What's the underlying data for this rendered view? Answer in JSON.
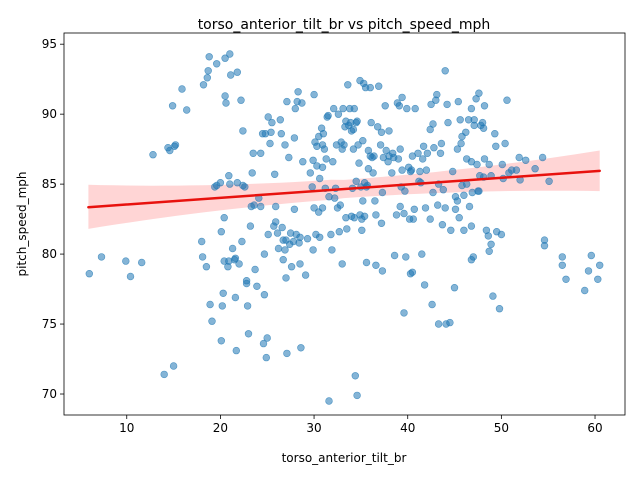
{
  "chart_data": {
    "type": "scatter",
    "title": "torso_anterior_tilt_br vs pitch_speed_mph",
    "xlabel": "torso_anterior_tilt_br",
    "ylabel": "pitch_speed_mph",
    "xlim": [
      3.3,
      63.2
    ],
    "ylim": [
      68.5,
      95.8
    ],
    "xticks": [
      10,
      20,
      30,
      40,
      50,
      60
    ],
    "yticks": [
      70,
      75,
      80,
      85,
      90,
      95
    ],
    "grid": false,
    "point_color": "#1f77b4",
    "regression": {
      "color": "#e8120e",
      "band_color": "#ffb3b3",
      "x": [
        5.9,
        60.5
      ],
      "y": [
        83.35,
        85.95
      ],
      "ci_upper": [
        84.95,
        87.4
      ],
      "ci_lower": [
        81.8,
        84.5
      ]
    },
    "points": [
      [
        6.0,
        78.6
      ],
      [
        7.3,
        79.8
      ],
      [
        9.9,
        79.5
      ],
      [
        10.4,
        78.4
      ],
      [
        11.6,
        79.4
      ],
      [
        12.8,
        87.1
      ],
      [
        14.0,
        71.4
      ],
      [
        14.4,
        87.6
      ],
      [
        14.6,
        87.4
      ],
      [
        15.0,
        72.0
      ],
      [
        14.9,
        90.6
      ],
      [
        15.1,
        87.7
      ],
      [
        15.2,
        87.8
      ],
      [
        15.9,
        91.8
      ],
      [
        16.4,
        90.3
      ],
      [
        18.0,
        80.9
      ],
      [
        18.1,
        79.8
      ],
      [
        18.2,
        92.1
      ],
      [
        18.5,
        79.1
      ],
      [
        18.6,
        92.6
      ],
      [
        18.7,
        93.1
      ],
      [
        18.8,
        94.1
      ],
      [
        18.9,
        76.4
      ],
      [
        19.1,
        75.2
      ],
      [
        19.4,
        84.8
      ],
      [
        19.6,
        84.9
      ],
      [
        19.6,
        93.6
      ],
      [
        20.0,
        85.1
      ],
      [
        20.1,
        81.6
      ],
      [
        20.1,
        73.8
      ],
      [
        20.2,
        76.3
      ],
      [
        20.3,
        77.2
      ],
      [
        20.4,
        82.6
      ],
      [
        20.4,
        79.5
      ],
      [
        20.5,
        91.3
      ],
      [
        20.5,
        94.0
      ],
      [
        20.6,
        90.8
      ],
      [
        20.8,
        79.1
      ],
      [
        20.9,
        79.5
      ],
      [
        20.9,
        85.6
      ],
      [
        21.0,
        94.3
      ],
      [
        21.0,
        85.0
      ],
      [
        21.1,
        92.8
      ],
      [
        21.3,
        80.4
      ],
      [
        21.5,
        79.6
      ],
      [
        21.6,
        76.9
      ],
      [
        21.6,
        79.7
      ],
      [
        21.7,
        73.1
      ],
      [
        21.8,
        93.0
      ],
      [
        21.8,
        85.1
      ],
      [
        22.0,
        79.3
      ],
      [
        22.2,
        91.0
      ],
      [
        22.3,
        80.9
      ],
      [
        22.4,
        88.8
      ],
      [
        22.4,
        84.9
      ],
      [
        22.6,
        84.8
      ],
      [
        22.8,
        78.1
      ],
      [
        22.8,
        77.9
      ],
      [
        22.9,
        76.3
      ],
      [
        23.0,
        74.3
      ],
      [
        23.2,
        82.0
      ],
      [
        23.3,
        83.4
      ],
      [
        23.4,
        85.8
      ],
      [
        23.5,
        87.2
      ],
      [
        23.6,
        83.5
      ],
      [
        23.7,
        78.9
      ],
      [
        23.9,
        77.7
      ],
      [
        24.1,
        84.0
      ],
      [
        24.3,
        83.4
      ],
      [
        24.3,
        87.2
      ],
      [
        24.5,
        88.6
      ],
      [
        24.6,
        73.6
      ],
      [
        24.7,
        77.1
      ],
      [
        24.7,
        80.0
      ],
      [
        24.8,
        88.6
      ],
      [
        24.9,
        72.6
      ],
      [
        25.0,
        74.0
      ],
      [
        25.1,
        89.8
      ],
      [
        25.1,
        81.4
      ],
      [
        25.3,
        87.9
      ],
      [
        25.4,
        88.7
      ],
      [
        25.5,
        89.4
      ],
      [
        25.7,
        82.0
      ],
      [
        25.8,
        85.7
      ],
      [
        25.9,
        82.3
      ],
      [
        25.9,
        83.4
      ],
      [
        26.1,
        81.5
      ],
      [
        26.2,
        80.4
      ],
      [
        26.4,
        89.6
      ],
      [
        26.5,
        88.6
      ],
      [
        26.6,
        81.9
      ],
      [
        26.7,
        79.6
      ],
      [
        26.7,
        81.0
      ],
      [
        26.9,
        87.8
      ],
      [
        26.9,
        80.3
      ],
      [
        27.0,
        81.0
      ],
      [
        27.0,
        78.3
      ],
      [
        27.1,
        90.9
      ],
      [
        27.1,
        72.9
      ],
      [
        27.3,
        86.9
      ],
      [
        27.4,
        80.7
      ],
      [
        27.5,
        81.5
      ],
      [
        27.6,
        79.1
      ],
      [
        27.8,
        80.9
      ],
      [
        27.9,
        88.3
      ],
      [
        27.9,
        83.2
      ],
      [
        28.0,
        90.4
      ],
      [
        28.1,
        81.4
      ],
      [
        28.2,
        90.9
      ],
      [
        28.3,
        91.6
      ],
      [
        28.4,
        80.8
      ],
      [
        28.5,
        79.3
      ],
      [
        28.5,
        81.2
      ],
      [
        28.6,
        73.3
      ],
      [
        28.7,
        90.8
      ],
      [
        28.8,
        86.6
      ],
      [
        29.1,
        78.5
      ],
      [
        29.3,
        81.1
      ],
      [
        29.6,
        85.8
      ],
      [
        29.8,
        84.8
      ],
      [
        29.9,
        80.3
      ],
      [
        29.9,
        86.7
      ],
      [
        30.0,
        91.4
      ],
      [
        30.0,
        83.3
      ],
      [
        30.1,
        88.0
      ],
      [
        30.2,
        81.4
      ],
      [
        30.3,
        86.3
      ],
      [
        30.3,
        87.7
      ],
      [
        30.5,
        88.4
      ],
      [
        30.5,
        83.0
      ],
      [
        30.6,
        85.4
      ],
      [
        30.6,
        81.2
      ],
      [
        30.8,
        89.0
      ],
      [
        30.9,
        87.8
      ],
      [
        30.9,
        86.2
      ],
      [
        30.9,
        83.3
      ],
      [
        31.0,
        88.6
      ],
      [
        31.1,
        87.5
      ],
      [
        31.2,
        84.7
      ],
      [
        31.3,
        86.8
      ],
      [
        31.4,
        89.8
      ],
      [
        31.5,
        89.9
      ],
      [
        31.6,
        84.1
      ],
      [
        31.6,
        69.5
      ],
      [
        31.8,
        81.4
      ],
      [
        31.9,
        80.3
      ],
      [
        32.0,
        86.6
      ],
      [
        32.1,
        90.4
      ],
      [
        32.2,
        84.0
      ],
      [
        32.3,
        84.7
      ],
      [
        32.4,
        87.8
      ],
      [
        32.5,
        83.3
      ],
      [
        32.6,
        90.0
      ],
      [
        32.7,
        81.6
      ],
      [
        32.8,
        83.5
      ],
      [
        32.9,
        88.0
      ],
      [
        33.0,
        79.3
      ],
      [
        33.0,
        87.5
      ],
      [
        33.1,
        90.4
      ],
      [
        33.2,
        87.8
      ],
      [
        33.3,
        89.1
      ],
      [
        33.4,
        82.6
      ],
      [
        33.4,
        89.5
      ],
      [
        33.5,
        81.8
      ],
      [
        33.6,
        92.1
      ],
      [
        33.7,
        89.2
      ],
      [
        33.8,
        90.4
      ],
      [
        33.9,
        89.4
      ],
      [
        34.0,
        88.8
      ],
      [
        34.0,
        82.7
      ],
      [
        34.1,
        84.7
      ],
      [
        34.2,
        87.5
      ],
      [
        34.2,
        88.9
      ],
      [
        34.3,
        90.4
      ],
      [
        34.3,
        82.6
      ],
      [
        34.4,
        71.3
      ],
      [
        34.5,
        89.4
      ],
      [
        34.5,
        85.2
      ],
      [
        34.6,
        69.9
      ],
      [
        34.6,
        89.5
      ],
      [
        34.7,
        87.8
      ],
      [
        34.8,
        86.5
      ],
      [
        34.9,
        92.4
      ],
      [
        34.9,
        82.8
      ],
      [
        35.0,
        84.8
      ],
      [
        35.1,
        82.5
      ],
      [
        35.1,
        81.7
      ],
      [
        35.2,
        88.1
      ],
      [
        35.2,
        83.8
      ],
      [
        35.3,
        92.2
      ],
      [
        35.4,
        82.7
      ],
      [
        35.4,
        85.1
      ],
      [
        35.5,
        91.9
      ],
      [
        35.6,
        84.8
      ],
      [
        35.6,
        79.4
      ],
      [
        35.7,
        84.9
      ],
      [
        35.8,
        87.4
      ],
      [
        35.8,
        86.1
      ],
      [
        36.0,
        91.9
      ],
      [
        36.0,
        87.0
      ],
      [
        36.1,
        89.4
      ],
      [
        36.2,
        86.9
      ],
      [
        36.3,
        85.8
      ],
      [
        36.4,
        87.0
      ],
      [
        36.5,
        83.8
      ],
      [
        36.6,
        82.8
      ],
      [
        36.6,
        79.2
      ],
      [
        36.8,
        89.1
      ],
      [
        36.9,
        92.0
      ],
      [
        37.1,
        87.8
      ],
      [
        37.2,
        88.7
      ],
      [
        37.2,
        82.2
      ],
      [
        37.3,
        84.4
      ],
      [
        37.3,
        78.8
      ],
      [
        37.4,
        86.9
      ],
      [
        37.6,
        90.6
      ],
      [
        37.7,
        87.4
      ],
      [
        37.9,
        86.6
      ],
      [
        38.0,
        87.0
      ],
      [
        38.0,
        88.8
      ],
      [
        38.3,
        85.8
      ],
      [
        38.4,
        87.2
      ],
      [
        38.5,
        86.9
      ],
      [
        38.6,
        79.9
      ],
      [
        38.8,
        82.8
      ],
      [
        38.9,
        90.8
      ],
      [
        39.0,
        86.8
      ],
      [
        39.1,
        90.6
      ],
      [
        39.2,
        87.5
      ],
      [
        39.2,
        83.4
      ],
      [
        39.3,
        84.8
      ],
      [
        39.4,
        91.2
      ],
      [
        39.4,
        86.0
      ],
      [
        39.6,
        82.9
      ],
      [
        39.6,
        75.8
      ],
      [
        39.7,
        84.5
      ],
      [
        39.8,
        79.8
      ],
      [
        39.9,
        90.4
      ],
      [
        40.1,
        86.2
      ],
      [
        40.2,
        82.5
      ],
      [
        40.3,
        78.6
      ],
      [
        40.3,
        85.9
      ],
      [
        40.4,
        86.0
      ],
      [
        40.5,
        87.0
      ],
      [
        40.5,
        78.7
      ],
      [
        40.6,
        82.5
      ],
      [
        40.7,
        83.2
      ],
      [
        40.8,
        90.4
      ],
      [
        41.1,
        87.2
      ],
      [
        41.2,
        85.2
      ],
      [
        41.3,
        85.9
      ],
      [
        41.4,
        85.1
      ],
      [
        41.5,
        80.0
      ],
      [
        41.6,
        86.8
      ],
      [
        41.7,
        87.7
      ],
      [
        41.8,
        77.8
      ],
      [
        41.9,
        83.3
      ],
      [
        42.0,
        86.0
      ],
      [
        42.1,
        87.2
      ],
      [
        42.4,
        82.5
      ],
      [
        42.4,
        88.9
      ],
      [
        42.5,
        90.7
      ],
      [
        42.6,
        76.4
      ],
      [
        42.7,
        89.3
      ],
      [
        42.7,
        84.4
      ],
      [
        42.8,
        87.6
      ],
      [
        43.0,
        91.0
      ],
      [
        43.1,
        91.4
      ],
      [
        43.2,
        83.5
      ],
      [
        43.3,
        85.0
      ],
      [
        43.3,
        75.0
      ],
      [
        43.5,
        87.2
      ],
      [
        43.6,
        87.9
      ],
      [
        43.7,
        82.1
      ],
      [
        43.8,
        84.6
      ],
      [
        44.0,
        83.3
      ],
      [
        44.0,
        93.1
      ],
      [
        44.1,
        75.0
      ],
      [
        44.2,
        90.7
      ],
      [
        44.3,
        89.4
      ],
      [
        44.5,
        75.1
      ],
      [
        44.6,
        81.7
      ],
      [
        44.8,
        85.9
      ],
      [
        45.0,
        77.6
      ],
      [
        45.1,
        84.1
      ],
      [
        45.1,
        83.2
      ],
      [
        45.3,
        87.5
      ],
      [
        45.3,
        83.8
      ],
      [
        45.4,
        90.9
      ],
      [
        45.5,
        82.6
      ],
      [
        45.6,
        89.6
      ],
      [
        45.7,
        87.9
      ],
      [
        45.8,
        88.4
      ],
      [
        45.8,
        84.9
      ],
      [
        46.0,
        84.2
      ],
      [
        46.0,
        81.7
      ],
      [
        46.2,
        88.7
      ],
      [
        46.3,
        86.8
      ],
      [
        46.3,
        85.0
      ],
      [
        46.5,
        89.6
      ],
      [
        46.6,
        83.4
      ],
      [
        46.8,
        90.4
      ],
      [
        46.8,
        82.0
      ],
      [
        46.8,
        86.6
      ],
      [
        46.8,
        79.6
      ],
      [
        46.9,
        84.4
      ],
      [
        47.0,
        79.8
      ],
      [
        47.1,
        89.2
      ],
      [
        47.1,
        89.6
      ],
      [
        47.3,
        91.1
      ],
      [
        47.4,
        86.4
      ],
      [
        47.5,
        84.5
      ],
      [
        47.6,
        91.5
      ],
      [
        47.6,
        84.5
      ],
      [
        47.7,
        85.6
      ],
      [
        47.8,
        89.2
      ],
      [
        48.0,
        89.4
      ],
      [
        48.1,
        85.5
      ],
      [
        48.1,
        89.0
      ],
      [
        48.2,
        86.8
      ],
      [
        48.2,
        90.6
      ],
      [
        48.4,
        81.7
      ],
      [
        48.6,
        81.3
      ],
      [
        48.7,
        80.2
      ],
      [
        48.7,
        86.4
      ],
      [
        48.9,
        80.7
      ],
      [
        48.9,
        85.6
      ],
      [
        49.1,
        77.0
      ],
      [
        49.3,
        88.6
      ],
      [
        49.4,
        87.7
      ],
      [
        49.5,
        81.6
      ],
      [
        49.8,
        76.1
      ],
      [
        50.0,
        81.4
      ],
      [
        50.1,
        86.4
      ],
      [
        50.2,
        85.4
      ],
      [
        50.4,
        87.9
      ],
      [
        50.6,
        91.0
      ],
      [
        50.8,
        85.8
      ],
      [
        51.1,
        86.0
      ],
      [
        51.6,
        86.0
      ],
      [
        51.9,
        86.9
      ],
      [
        52.0,
        85.3
      ],
      [
        52.6,
        86.7
      ],
      [
        53.6,
        86.1
      ],
      [
        54.4,
        86.9
      ],
      [
        54.6,
        81.0
      ],
      [
        54.6,
        80.6
      ],
      [
        55.1,
        85.2
      ],
      [
        56.5,
        79.8
      ],
      [
        56.5,
        79.2
      ],
      [
        56.9,
        78.2
      ],
      [
        58.9,
        77.4
      ],
      [
        59.3,
        78.8
      ],
      [
        59.6,
        79.9
      ],
      [
        60.3,
        78.2
      ],
      [
        60.5,
        79.2
      ]
    ]
  }
}
